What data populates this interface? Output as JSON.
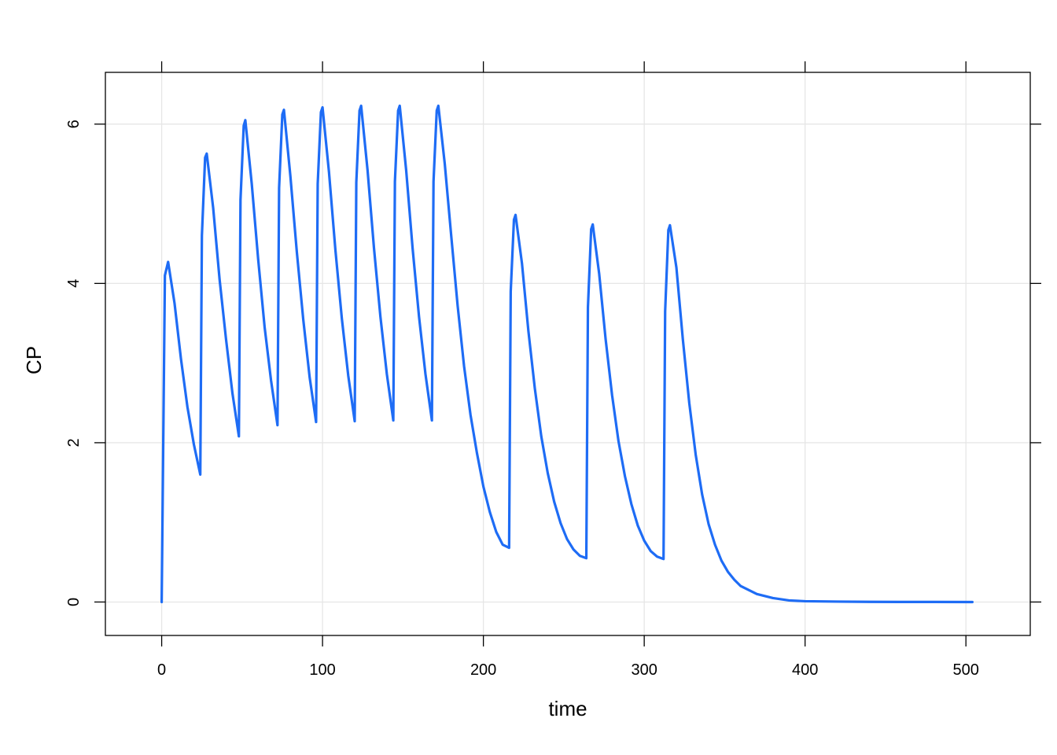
{
  "chart_data": {
    "type": "line",
    "title": "",
    "xlabel": "time",
    "ylabel": "CP",
    "xlim": [
      -35,
      540
    ],
    "ylim": [
      -0.42,
      6.65
    ],
    "x_ticks": [
      0,
      100,
      200,
      300,
      400,
      500
    ],
    "y_ticks": [
      0,
      2,
      4,
      6
    ],
    "x_tick_labels": [
      "0",
      "100",
      "200",
      "300",
      "400",
      "500"
    ],
    "y_tick_labels": [
      "0",
      "2",
      "4",
      "6"
    ],
    "grid": true,
    "line_color": "#1E6CF5",
    "grid_color": "#E6E6E6",
    "series": [
      {
        "x": [
          0,
          2,
          4,
          8,
          12,
          16,
          20,
          24,
          25,
          27,
          28,
          32,
          36,
          40,
          44,
          48,
          49,
          51,
          52,
          56,
          60,
          64,
          68,
          72,
          73,
          75,
          76,
          80,
          84,
          88,
          92,
          96,
          97,
          99,
          100,
          104,
          108,
          112,
          116,
          120,
          121,
          123,
          124,
          128,
          132,
          136,
          140,
          144,
          145,
          147,
          148,
          152,
          156,
          160,
          164,
          168,
          169,
          171,
          172,
          176,
          180,
          184,
          188,
          192,
          196,
          200,
          204,
          208,
          212,
          216,
          217,
          219,
          220,
          224,
          228,
          232,
          236,
          240,
          244,
          248,
          252,
          256,
          260,
          264,
          265,
          267,
          268,
          272,
          276,
          280,
          284,
          288,
          292,
          296,
          300,
          304,
          308,
          312,
          313,
          315,
          316,
          320,
          324,
          328,
          332,
          336,
          340,
          344,
          348,
          352,
          356,
          360,
          370,
          380,
          390,
          400,
          420,
          440,
          460,
          480,
          504
        ],
        "y": [
          0,
          4.1,
          4.27,
          3.75,
          3.05,
          2.45,
          1.98,
          1.6,
          4.6,
          5.58,
          5.63,
          4.95,
          4.05,
          3.3,
          2.62,
          2.08,
          5.05,
          5.98,
          6.05,
          5.25,
          4.3,
          3.45,
          2.78,
          2.22,
          5.2,
          6.12,
          6.18,
          5.35,
          4.4,
          3.55,
          2.82,
          2.26,
          5.25,
          6.15,
          6.21,
          5.4,
          4.42,
          3.56,
          2.84,
          2.27,
          5.27,
          6.17,
          6.23,
          5.42,
          4.44,
          3.58,
          2.86,
          2.28,
          5.28,
          6.17,
          6.23,
          5.42,
          4.44,
          3.58,
          2.86,
          2.28,
          5.28,
          6.17,
          6.23,
          5.5,
          4.6,
          3.72,
          2.96,
          2.35,
          1.87,
          1.45,
          1.13,
          0.88,
          0.72,
          0.68,
          3.9,
          4.8,
          4.86,
          4.25,
          3.4,
          2.68,
          2.08,
          1.62,
          1.26,
          0.99,
          0.79,
          0.66,
          0.58,
          0.55,
          3.7,
          4.68,
          4.74,
          4.12,
          3.3,
          2.6,
          2.02,
          1.58,
          1.23,
          0.96,
          0.77,
          0.64,
          0.57,
          0.54,
          3.65,
          4.67,
          4.73,
          4.2,
          3.3,
          2.5,
          1.85,
          1.35,
          0.98,
          0.72,
          0.52,
          0.38,
          0.28,
          0.2,
          0.1,
          0.05,
          0.02,
          0.01,
          0.005,
          0.002,
          0.001,
          0.0005,
          0
        ]
      }
    ]
  }
}
